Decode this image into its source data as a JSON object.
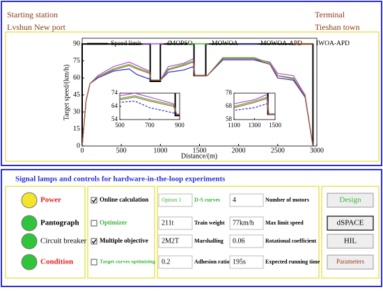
{
  "header": {
    "start_label": "Starting station",
    "start_name": "Lvshun New port",
    "end_label": "Terminal",
    "end_name": "Tieshan town"
  },
  "chart_data": {
    "type": "line",
    "x_label": "Distance/(m)",
    "y_label": "Target speed/(km/h)",
    "xlim": [
      0,
      3000
    ],
    "ylim": [
      0,
      95
    ],
    "xticks": [
      0,
      500,
      1000,
      1500,
      2000,
      2500,
      3000
    ],
    "yticks": [
      0,
      15,
      30,
      45,
      60,
      75,
      90
    ],
    "series": [
      {
        "name": "Speed limit",
        "color": "#000000",
        "x": [
          0,
          0,
          870,
          870,
          1000,
          1000,
          1430,
          1430,
          1580,
          1580,
          2950,
          2950
        ],
        "values": [
          0,
          90,
          90,
          57,
          57,
          90,
          90,
          62,
          62,
          90,
          90,
          0
        ]
      },
      {
        "name": "dMOPSO",
        "color": "#b04fd8",
        "x": [
          0,
          50,
          100,
          200,
          400,
          600,
          700,
          860,
          880,
          1000,
          1100,
          1300,
          1420,
          1440,
          1600,
          1800,
          2000,
          2200,
          2400,
          2500,
          2700,
          2850,
          2950
        ],
        "values": [
          0,
          40,
          55,
          62,
          70,
          74,
          71,
          66,
          58,
          58,
          70,
          73,
          77,
          62,
          62,
          77,
          77,
          77,
          74,
          64,
          62,
          45,
          0
        ]
      },
      {
        "name": "MOWOA",
        "color": "#4cb53a",
        "x": [
          0,
          50,
          100,
          200,
          400,
          600,
          700,
          860,
          880,
          1000,
          1100,
          1300,
          1420,
          1440,
          1600,
          1800,
          2000,
          2200,
          2400,
          2500,
          2700,
          2850,
          2950
        ],
        "values": [
          0,
          40,
          55,
          61,
          68,
          72,
          69,
          65,
          58,
          58,
          68,
          72,
          75,
          62,
          62,
          78,
          78,
          78,
          73,
          62,
          60,
          44,
          0
        ]
      },
      {
        "name": "MOWOA-APD",
        "color": "#1f2fd8",
        "x": [
          0,
          50,
          100,
          200,
          400,
          600,
          700,
          860,
          880,
          1000,
          1100,
          1300,
          1420,
          1440,
          1600,
          1800,
          2000,
          2200,
          2400,
          2500,
          2700,
          2850,
          2950
        ],
        "values": [
          0,
          40,
          55,
          60,
          66,
          68,
          63,
          59,
          58,
          58,
          65,
          67,
          70,
          62,
          62,
          76,
          76,
          76,
          72,
          60,
          58,
          43,
          0
        ]
      },
      {
        "name": "IWOA-APD",
        "color": "#b5592c",
        "x": [
          0,
          50,
          100,
          200,
          400,
          600,
          700,
          860,
          880,
          1000,
          1100,
          1300,
          1420,
          1440,
          1600,
          1800,
          2000,
          2200,
          2400,
          2500,
          2700,
          2850,
          2950
        ],
        "values": [
          0,
          40,
          55,
          61,
          67,
          71,
          68,
          64,
          58,
          58,
          67,
          71,
          74,
          62,
          62,
          77,
          77,
          77,
          72,
          62,
          59,
          44,
          0
        ]
      }
    ],
    "insets": [
      {
        "xlim": [
          500,
          900
        ],
        "ylim": [
          54,
          74
        ],
        "xticks": [
          500,
          700,
          900
        ],
        "yticks": [
          54,
          64,
          74
        ]
      },
      {
        "xlim": [
          1100,
          1500
        ],
        "ylim": [
          58,
          78
        ],
        "xticks": [
          1100,
          1300,
          1500
        ],
        "yticks": [
          58,
          68,
          78
        ]
      }
    ]
  },
  "controls": {
    "title": "Signal lamps and controls for hardware-in-the-loop experiments",
    "lamps": [
      {
        "label": "Power",
        "color": "#f2e52a",
        "text_color": "#e0201e"
      },
      {
        "label": "Pantograph",
        "color": "#2fc43a",
        "text_color": "#000000"
      },
      {
        "label": "Circuit breaker",
        "color": "#2fc43a",
        "text_color": "#000000"
      },
      {
        "label": "Condition",
        "color": "#2fc43a",
        "text_color": "#e0201e"
      }
    ],
    "checks": [
      {
        "label": "Online calculation",
        "checked": true,
        "text_color": "#000000"
      },
      {
        "label": "Optimizer",
        "checked": false,
        "text_color": "#3bb53b"
      },
      {
        "label": "Multiple objective",
        "checked": true,
        "text_color": "#000000"
      },
      {
        "label": "Target curves optimizing",
        "checked": false,
        "text_color": "#3bb53b"
      }
    ],
    "params": [
      [
        "Option 1",
        "D-S curves",
        "4",
        "Number of motors"
      ],
      [
        "211t",
        "Train weight",
        "77km/h",
        "Max limit speed"
      ],
      [
        "2M2T",
        "Marshalling",
        "0.06",
        "Rotational coefficient"
      ],
      [
        "0.2",
        "Adhesion ratio",
        "195s",
        "Expected running time"
      ]
    ],
    "buttons": [
      {
        "label": "Design",
        "text_color": "#3bb53b"
      },
      {
        "label": "dSPACE",
        "text_color": "#000000"
      },
      {
        "label": "HIL",
        "text_color": "#000000"
      },
      {
        "label": "Parameters",
        "text_color": "#9a3a1a"
      }
    ]
  }
}
